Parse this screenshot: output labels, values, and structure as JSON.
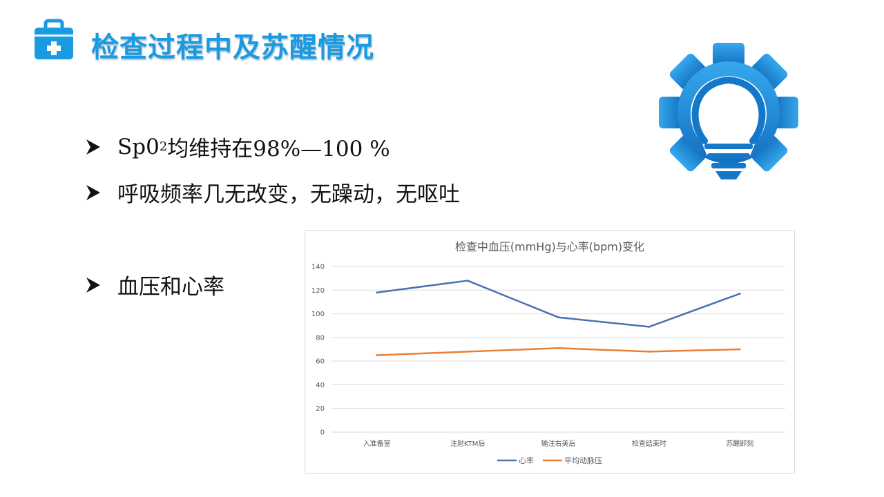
{
  "slide": {
    "title": "检查过程中及苏醒情况",
    "bullets": {
      "b1_prefix": "Sp0",
      "b1_sub": "2",
      "b1_suffix": "均维持在98%—100 %",
      "b2": "呼吸频率几无改变，无躁动，无呕吐",
      "b3": "血压和心率"
    },
    "colors": {
      "title": "#1a9ae0",
      "logo": "#1a8ad8"
    }
  },
  "chart_data": {
    "type": "line",
    "title": "检查中血压(mmHg)与心率(bpm)变化",
    "categories": [
      "入准备室",
      "注射KTM后",
      "输注右美后",
      "检查结束时",
      "苏醒即刻"
    ],
    "yticks": [
      "0",
      "20",
      "40",
      "60",
      "80",
      "100",
      "120",
      "140"
    ],
    "ylim": [
      0,
      140
    ],
    "grid": true,
    "legend_position": "bottom",
    "series": [
      {
        "name": "心率",
        "color": "#4a72b0",
        "values": [
          118,
          128,
          97,
          89,
          117
        ]
      },
      {
        "name": "平均动脉压",
        "color": "#ed7d31",
        "values": [
          65,
          68,
          71,
          68,
          70
        ]
      }
    ]
  }
}
